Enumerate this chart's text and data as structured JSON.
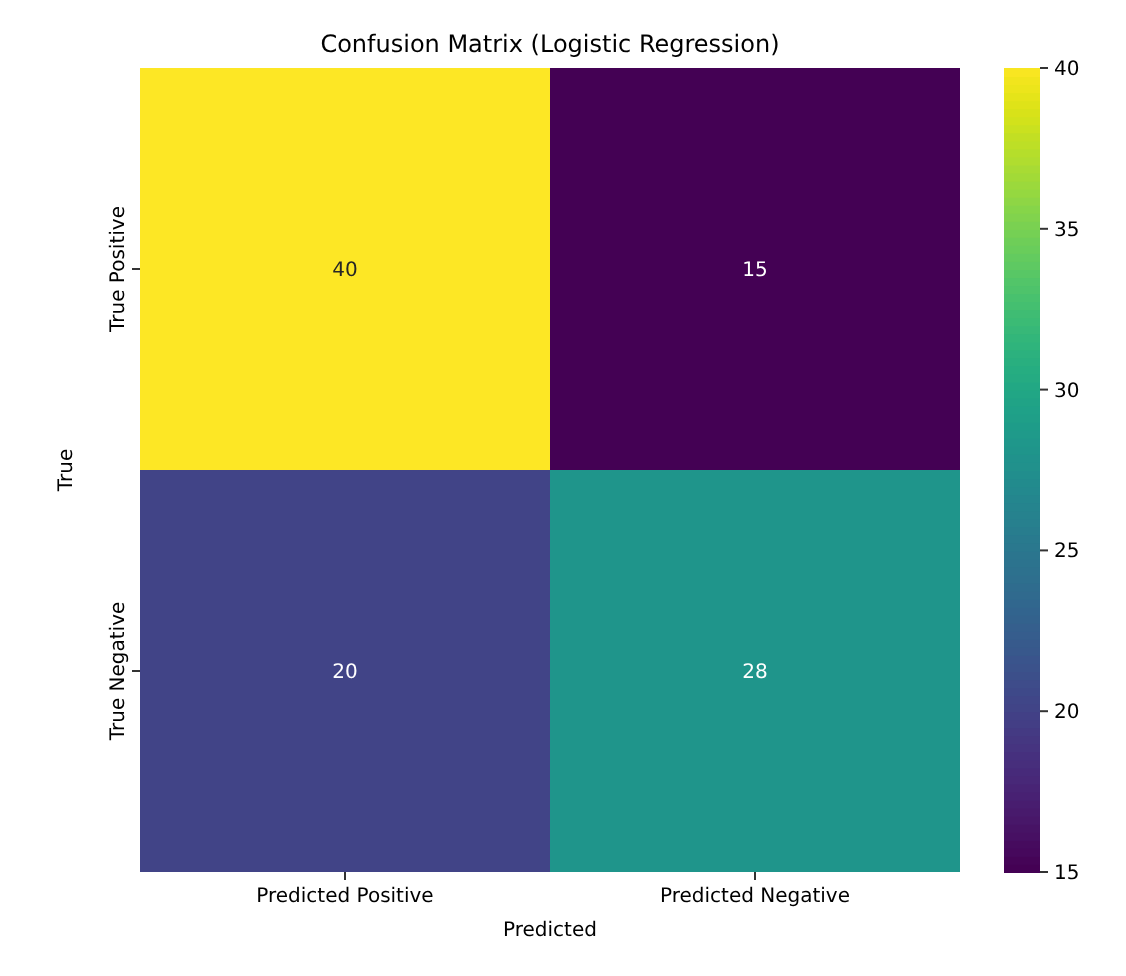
{
  "chart_data": {
    "type": "heatmap",
    "title": "Confusion Matrix (Logistic Regression)",
    "xlabel": "Predicted",
    "ylabel": "True",
    "categories": [
      "Predicted Positive",
      "Predicted Negative"
    ],
    "y_categories": [
      "True Positive",
      "True Negative"
    ],
    "cells": [
      [
        40,
        15
      ],
      [
        20,
        28
      ]
    ],
    "data_labels": true,
    "clim": [
      15,
      40
    ],
    "cticks": [
      15,
      20,
      25,
      30,
      35,
      40
    ]
  }
}
